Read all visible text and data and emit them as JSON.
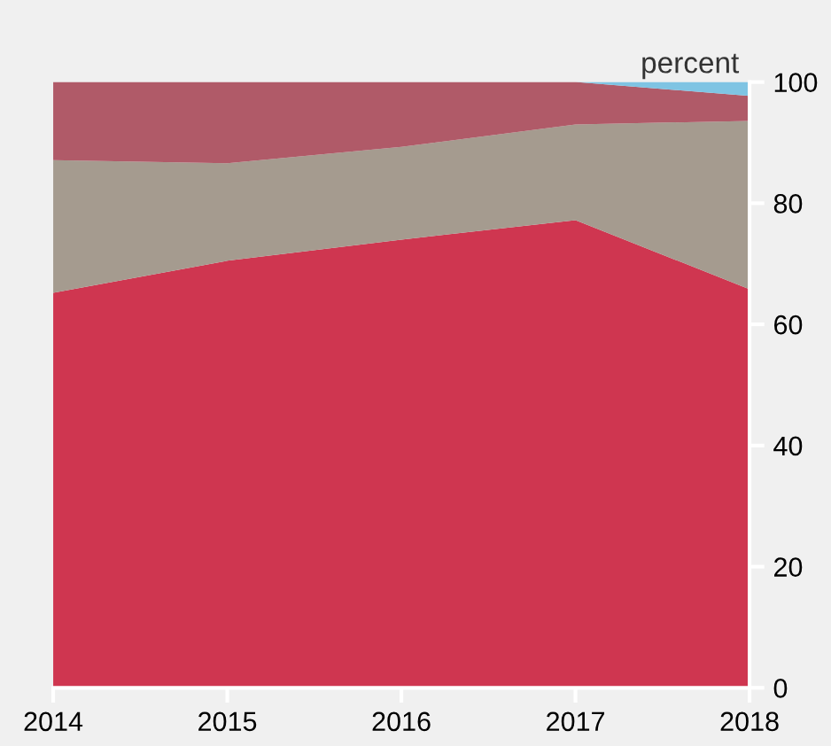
{
  "chart_data": {
    "type": "area",
    "stacked": true,
    "ylabel": "percent",
    "x": [
      2014,
      2015,
      2016,
      2017,
      2018
    ],
    "series": [
      {
        "color": "#cf3650",
        "values": [
          65.2,
          70.5,
          74.0,
          77.2,
          65.8
        ]
      },
      {
        "color": "#a59b8f",
        "values": [
          21.9,
          16.1,
          15.3,
          15.8,
          27.8
        ]
      },
      {
        "color": "#b05a68",
        "values": [
          12.9,
          13.4,
          10.7,
          7.0,
          4.1
        ]
      },
      {
        "color": "#7fc4e3",
        "values": [
          0,
          0,
          0,
          0,
          2.3
        ]
      }
    ],
    "xlim": [
      2014,
      2018
    ],
    "xticks": [
      2014,
      2015,
      2016,
      2017,
      2018
    ],
    "ylim": [
      0,
      100
    ],
    "yticks": [
      0,
      20,
      40,
      60,
      80,
      100
    ],
    "grid": false,
    "legend": false
  }
}
